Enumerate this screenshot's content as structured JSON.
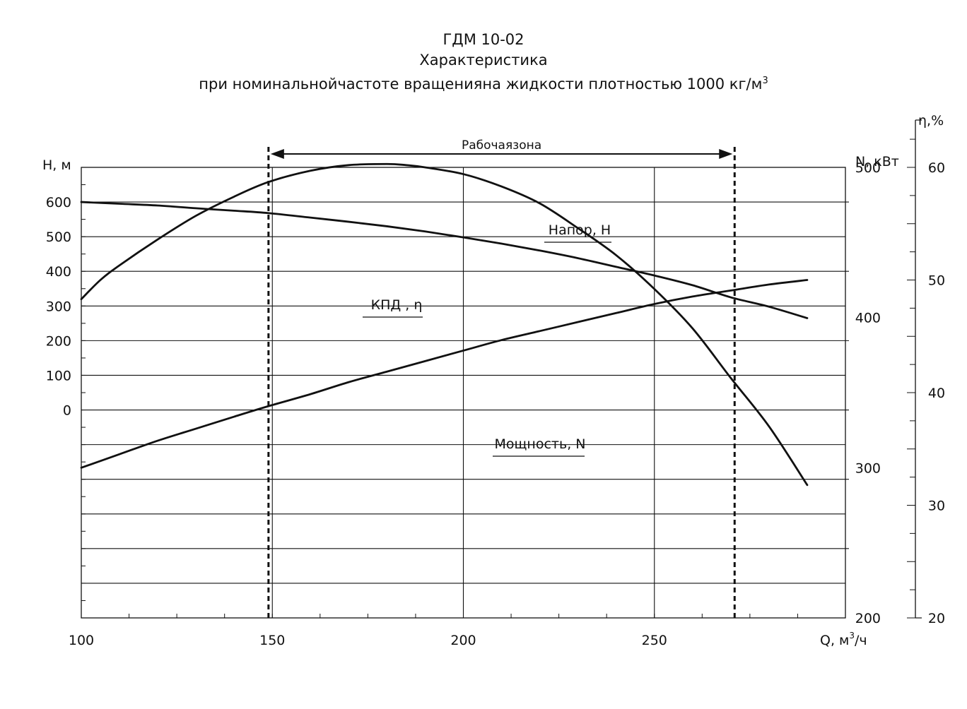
{
  "chart_data": {
    "type": "line",
    "title": "ГДМ 10-02",
    "subtitle": "Характеристика",
    "subtitle2": "при номинальнойчастоте вращенияна жидкости плотностью 1000 кг/м",
    "subtitle2_sup": "3",
    "xlabel": "Q,  м",
    "xlabel_sup": "3",
    "xlabel_tail": "/ч",
    "xlim": [
      100,
      300
    ],
    "xticks": [
      100,
      150,
      200,
      250
    ],
    "xtick_labels": [
      "100",
      "150",
      "200",
      "250"
    ],
    "grid": true,
    "axes": {
      "head": {
        "label": "H,  м",
        "lim": [
          -600,
          700
        ],
        "ticks": [
          0,
          100,
          200,
          300,
          400,
          500,
          600
        ],
        "tick_labels": [
          "0",
          "100",
          "200",
          "300",
          "400",
          "500",
          "600"
        ]
      },
      "power": {
        "label": "N,  кВт",
        "lim": [
          200,
          500
        ],
        "ticks": [
          200,
          300,
          400,
          500
        ],
        "tick_labels": [
          "200",
          "300",
          "400",
          "500"
        ]
      },
      "efficiency": {
        "label": "η,%",
        "lim": [
          20,
          60
        ],
        "ticks": [
          20,
          30,
          40,
          50,
          60
        ],
        "tick_labels": [
          "20",
          "30",
          "40",
          "50",
          "60"
        ]
      }
    },
    "working_zone": {
      "label": "Рабочаязона",
      "x_start": 149,
      "x_end": 271
    },
    "series": [
      {
        "name": "Напор, Н",
        "axis": "head",
        "x": [
          100,
          110,
          120,
          130,
          140,
          149,
          160,
          170,
          180,
          190,
          200,
          210,
          220,
          230,
          240,
          250,
          260,
          270,
          280,
          290
        ],
        "y": [
          600,
          595,
          590,
          582,
          575,
          568,
          555,
          543,
          530,
          515,
          498,
          480,
          460,
          438,
          413,
          388,
          360,
          325,
          298,
          265
        ]
      },
      {
        "name": "КПД , η",
        "axis": "efficiency",
        "x": [
          100,
          105,
          110,
          120,
          130,
          140,
          149,
          160,
          170,
          180,
          185,
          190,
          200,
          210,
          220,
          230,
          240,
          250,
          260,
          270,
          280,
          290
        ],
        "y": [
          48.3,
          50.0,
          51.3,
          53.6,
          55.7,
          57.4,
          58.7,
          59.7,
          60.2,
          60.3,
          60.2,
          60.0,
          59.4,
          58.3,
          56.8,
          54.6,
          52.2,
          49.2,
          45.7,
          41.3,
          37.0,
          31.8
        ]
      },
      {
        "name": "Мощность, N",
        "axis": "power",
        "x": [
          100,
          110,
          120,
          130,
          140,
          149,
          160,
          170,
          180,
          190,
          200,
          210,
          220,
          230,
          240,
          250,
          260,
          270,
          280,
          290
        ],
        "y": [
          300,
          309,
          318,
          326,
          334,
          341,
          349,
          357,
          364,
          371,
          378,
          385,
          391,
          397,
          403,
          409,
          414,
          418,
          422,
          425
        ]
      }
    ]
  }
}
